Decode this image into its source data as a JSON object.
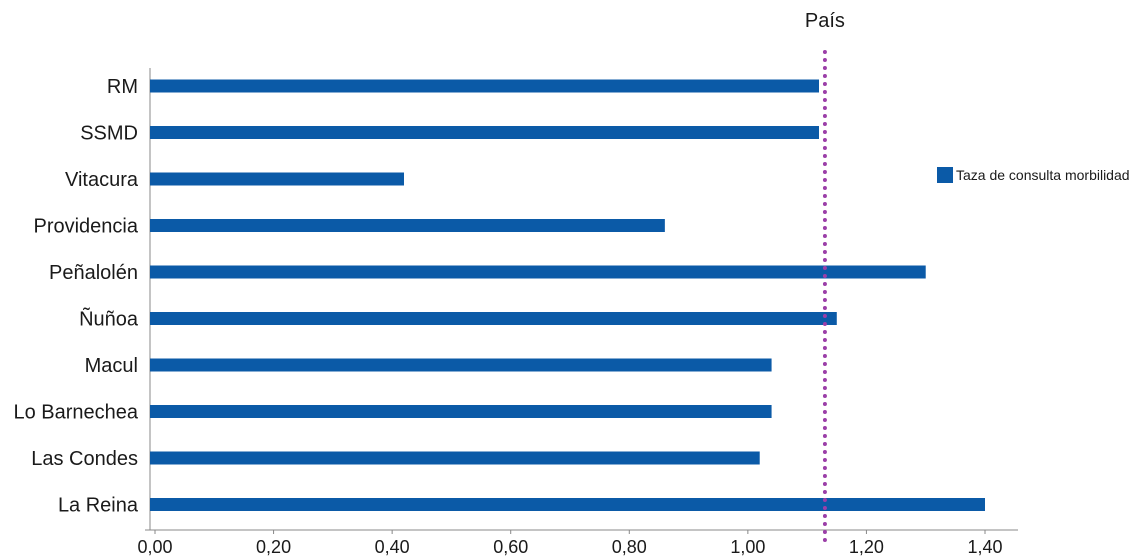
{
  "chart_data": {
    "type": "bar",
    "orientation": "horizontal",
    "categories": [
      "RM",
      "SSMD",
      "Vitacura",
      "Providencia",
      "Peñalolén",
      "Ñuñoa",
      "Macul",
      "Lo Barnechea",
      "Las Condes",
      "La Reina"
    ],
    "series": [
      {
        "name": "Taza de consulta morbilidad",
        "color": "#0b5aa7",
        "values": [
          1.12,
          1.12,
          0.42,
          0.86,
          1.3,
          1.15,
          1.04,
          1.04,
          1.02,
          1.4
        ]
      }
    ],
    "xlim": [
      0,
      1.4
    ],
    "x_ticks": [
      "0,00",
      "0,20",
      "0,40",
      "0,60",
      "0,80",
      "1,00",
      "1,20",
      "1,40"
    ],
    "x_tick_values": [
      0,
      0.2,
      0.4,
      0.6,
      0.8,
      1.0,
      1.2,
      1.4
    ],
    "reference_line": {
      "label": "País",
      "value": 1.13,
      "color": "#9b3fa8",
      "style": "dotted"
    },
    "legend_position": "right",
    "grid": false,
    "title": "",
    "xlabel": "",
    "ylabel": ""
  }
}
